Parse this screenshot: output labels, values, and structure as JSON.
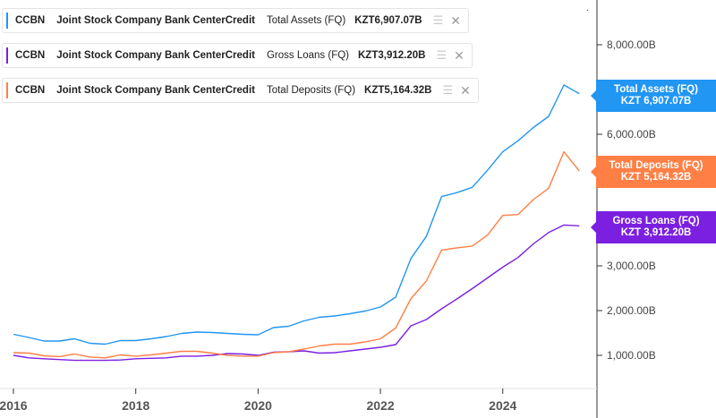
{
  "legend": [
    {
      "ticker": "CCBN",
      "company": "Joint Stock Company Bank CenterCredit",
      "metric": "Total Assets (FQ)",
      "value": "KZT6,907.07B",
      "color": "#2196f3"
    },
    {
      "ticker": "CCBN",
      "company": "Joint Stock Company Bank CenterCredit",
      "metric": "Gross Loans (FQ)",
      "value": "KZT3,912.20B",
      "color": "#7b1fe0"
    },
    {
      "ticker": "CCBN",
      "company": "Joint Stock Company Bank CenterCredit",
      "metric": "Total Deposits (FQ)",
      "value": "KZT5,164.32B",
      "color": "#ff7f45"
    }
  ],
  "end_labels": [
    {
      "line1": "Total Assets (FQ)",
      "line2": "KZT 6,907.07B",
      "color": "#2196f3"
    },
    {
      "line1": "Total Deposits (FQ)",
      "line2": "KZT 5,164.32B",
      "color": "#ff7f45"
    },
    {
      "line1": "Gross Loans (FQ)",
      "line2": "KZT 3,912.20B",
      "color": "#7b1fe0"
    }
  ],
  "chart_data": {
    "type": "line",
    "y_ticks": [
      {
        "value": 1000,
        "label": "1,000.00B"
      },
      {
        "value": 2000,
        "label": "2,000.00B"
      },
      {
        "value": 3000,
        "label": "3,000.00B"
      },
      {
        "value": 4000,
        "label": "4,000.00B"
      },
      {
        "value": 6000,
        "label": "6,000.00B"
      },
      {
        "value": 8000,
        "label": "8,000.00B"
      }
    ],
    "x_ticks": [
      "2016",
      "2018",
      "2020",
      "2022",
      "2024"
    ],
    "x_range": [
      2016.0,
      2025.35
    ],
    "x": [
      2016.0,
      2016.25,
      2016.5,
      2016.75,
      2017.0,
      2017.25,
      2017.5,
      2017.75,
      2018.0,
      2018.25,
      2018.5,
      2018.75,
      2019.0,
      2019.25,
      2019.5,
      2019.75,
      2020.0,
      2020.25,
      2020.5,
      2020.75,
      2021.0,
      2021.25,
      2021.5,
      2021.75,
      2022.0,
      2022.25,
      2022.5,
      2022.75,
      2023.0,
      2023.25,
      2023.5,
      2023.75,
      2024.0,
      2024.25,
      2024.5,
      2024.75,
      2025.0,
      2025.25
    ],
    "series": [
      {
        "name": "Total Assets (FQ)",
        "color": "#2196f3",
        "values": [
          1470,
          1400,
          1320,
          1320,
          1370,
          1270,
          1250,
          1330,
          1330,
          1370,
          1420,
          1490,
          1520,
          1510,
          1490,
          1470,
          1460,
          1620,
          1650,
          1770,
          1850,
          1880,
          1930,
          1990,
          2080,
          2300,
          3170,
          3670,
          4580,
          4670,
          4790,
          5180,
          5600,
          5850,
          6150,
          6400,
          7100,
          6907.07
        ]
      },
      {
        "name": "Total Deposits (FQ)",
        "color": "#ff7f45",
        "values": [
          1060,
          1050,
          990,
          970,
          1030,
          960,
          940,
          1010,
          980,
          1010,
          1050,
          1090,
          1090,
          1050,
          1000,
          980,
          980,
          1060,
          1080,
          1140,
          1210,
          1250,
          1250,
          1300,
          1370,
          1610,
          2270,
          2660,
          3360,
          3410,
          3450,
          3700,
          4150,
          4170,
          4510,
          4770,
          5600,
          5164.32
        ]
      },
      {
        "name": "Gross Loans (FQ)",
        "color": "#7b1fe0",
        "values": [
          1000,
          940,
          920,
          900,
          880,
          880,
          880,
          890,
          920,
          930,
          940,
          980,
          980,
          1000,
          1040,
          1030,
          1000,
          1070,
          1080,
          1100,
          1050,
          1060,
          1100,
          1140,
          1180,
          1240,
          1660,
          1800,
          2040,
          2260,
          2490,
          2730,
          2970,
          3190,
          3500,
          3760,
          3930,
          3912.2
        ]
      }
    ]
  }
}
